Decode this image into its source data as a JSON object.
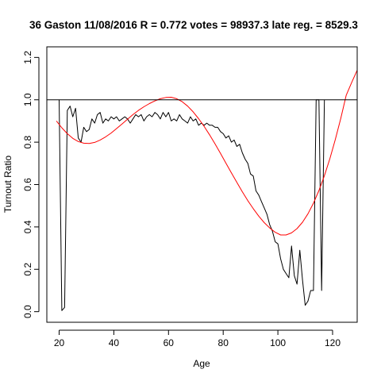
{
  "chart_data": {
    "type": "line",
    "title": "36 Gaston 11/08/2016 R = 0.772 votes = 98937.3 late reg. = 8529.3",
    "xlabel": "Age",
    "ylabel": "Turnout Ratio",
    "xlim": [
      15.5,
      129
    ],
    "ylim": [
      -0.05,
      1.25
    ],
    "xticks": [
      "20",
      "40",
      "60",
      "80",
      "100",
      "120"
    ],
    "yticks": [
      "0.0",
      "0.2",
      "0.4",
      "0.6",
      "0.8",
      "1.0",
      "1.2"
    ],
    "grid": false,
    "legend": "none",
    "reference_line": {
      "y": 1.0,
      "color": "#000000"
    },
    "series": [
      {
        "color": "#000000",
        "x": [
          20,
          21,
          22,
          23,
          24,
          25,
          26,
          27,
          28,
          29,
          30,
          31,
          32,
          33,
          34,
          35,
          36,
          37,
          38,
          39,
          40,
          41,
          42,
          43,
          44,
          45,
          46,
          47,
          48,
          49,
          50,
          51,
          52,
          53,
          54,
          55,
          56,
          57,
          58,
          59,
          60,
          61,
          62,
          63,
          64,
          65,
          66,
          67,
          68,
          69,
          70,
          71,
          72,
          73,
          74,
          75,
          76,
          77,
          78,
          79,
          80,
          81,
          82,
          83,
          84,
          85,
          86,
          87,
          88,
          89,
          90,
          91,
          92,
          93,
          94,
          95,
          96,
          97,
          98,
          99,
          100,
          101,
          102,
          103,
          104,
          105,
          106,
          107,
          108,
          109,
          110,
          111,
          112,
          113,
          114,
          115,
          116,
          117
        ],
        "y": [
          1.0,
          0.005,
          0.02,
          0.95,
          0.97,
          0.92,
          0.96,
          0.82,
          0.8,
          0.87,
          0.85,
          0.86,
          0.91,
          0.89,
          0.93,
          0.94,
          0.89,
          0.91,
          0.9,
          0.92,
          0.91,
          0.92,
          0.9,
          0.91,
          0.92,
          0.91,
          0.89,
          0.91,
          0.93,
          0.92,
          0.93,
          0.9,
          0.92,
          0.93,
          0.92,
          0.94,
          0.93,
          0.91,
          0.94,
          0.92,
          0.94,
          0.9,
          0.91,
          0.9,
          0.93,
          0.91,
          0.9,
          0.89,
          0.92,
          0.9,
          0.91,
          0.88,
          0.89,
          0.88,
          0.89,
          0.88,
          0.88,
          0.87,
          0.87,
          0.85,
          0.84,
          0.82,
          0.83,
          0.8,
          0.81,
          0.78,
          0.79,
          0.75,
          0.72,
          0.7,
          0.65,
          0.64,
          0.57,
          0.55,
          0.52,
          0.49,
          0.46,
          0.41,
          0.38,
          0.33,
          0.32,
          0.25,
          0.2,
          0.18,
          0.16,
          0.31,
          0.17,
          0.13,
          0.29,
          0.15,
          0.03,
          0.05,
          0.1,
          0.1,
          1.0,
          1.0,
          0.1,
          1.0
        ]
      },
      {
        "color": "#ff0000",
        "x": [
          19,
          21,
          23,
          25,
          27,
          29,
          31,
          33,
          35,
          37,
          39,
          41,
          43,
          45,
          47,
          49,
          51,
          53,
          55,
          57,
          59,
          61,
          63,
          65,
          67,
          69,
          71,
          73,
          75,
          77,
          79,
          81,
          83,
          85,
          87,
          89,
          91,
          93,
          95,
          97,
          99,
          101,
          103,
          105,
          107,
          109,
          111,
          113,
          115,
          117,
          119,
          121,
          123,
          125,
          127,
          129
        ],
        "y": [
          0.9,
          0.868,
          0.84,
          0.818,
          0.803,
          0.795,
          0.794,
          0.799,
          0.81,
          0.825,
          0.843,
          0.864,
          0.886,
          0.908,
          0.93,
          0.95,
          0.967,
          0.982,
          0.995,
          1.005,
          1.011,
          1.012,
          1.005,
          0.991,
          0.97,
          0.943,
          0.911,
          0.875,
          0.835,
          0.792,
          0.747,
          0.701,
          0.655,
          0.61,
          0.566,
          0.524,
          0.486,
          0.451,
          0.42,
          0.395,
          0.375,
          0.362,
          0.362,
          0.372,
          0.392,
          0.422,
          0.462,
          0.512,
          0.572,
          0.642,
          0.722,
          0.812,
          0.912,
          1.022,
          1.082,
          1.14
        ]
      }
    ]
  }
}
